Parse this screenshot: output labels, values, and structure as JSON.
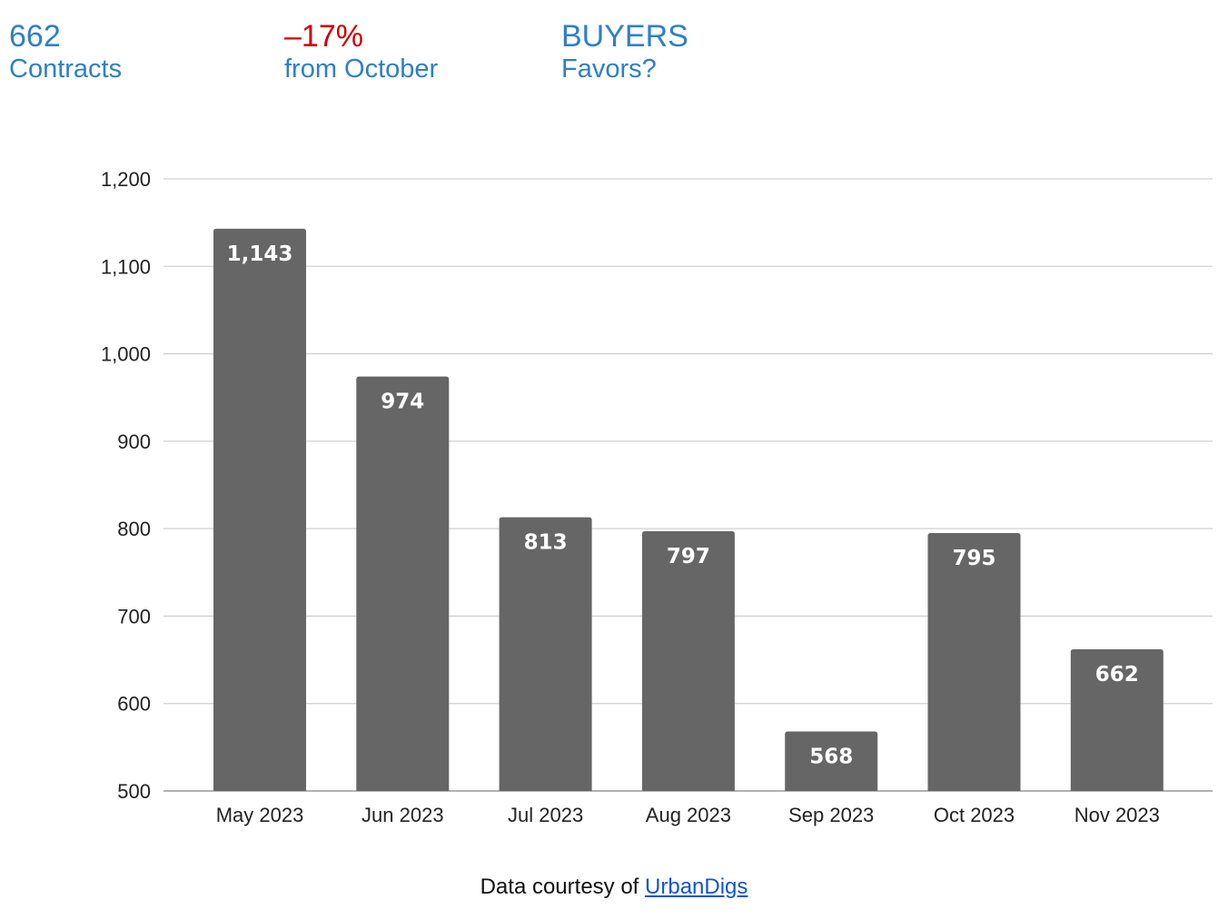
{
  "header": {
    "stats": [
      {
        "value": "662",
        "label": "Contracts",
        "value_color": "#2f7fc6"
      },
      {
        "value": "–17%",
        "label": "from October",
        "value_color": "#cc0000"
      },
      {
        "value": "BUYERS",
        "label": "Favors?",
        "value_color": "#2f7fc6"
      }
    ]
  },
  "chart_data": {
    "type": "bar",
    "categories": [
      "May 2023",
      "Jun 2023",
      "Jul 2023",
      "Aug 2023",
      "Sep 2023",
      "Oct 2023",
      "Nov 2023"
    ],
    "values": [
      1143,
      974,
      813,
      797,
      568,
      795,
      662
    ],
    "data_labels": [
      "1,143",
      "974",
      "813",
      "797",
      "568",
      "795",
      "662"
    ],
    "yticks": [
      "500",
      "600",
      "700",
      "800",
      "900",
      "1,000",
      "1,100",
      "1,200"
    ],
    "ylim": [
      500,
      1200
    ],
    "grid": true,
    "bar_color": "#666666",
    "title": "",
    "xlabel": "",
    "ylabel": ""
  },
  "footer": {
    "prefix": "Data courtesy of ",
    "link_text": "UrbanDigs"
  }
}
